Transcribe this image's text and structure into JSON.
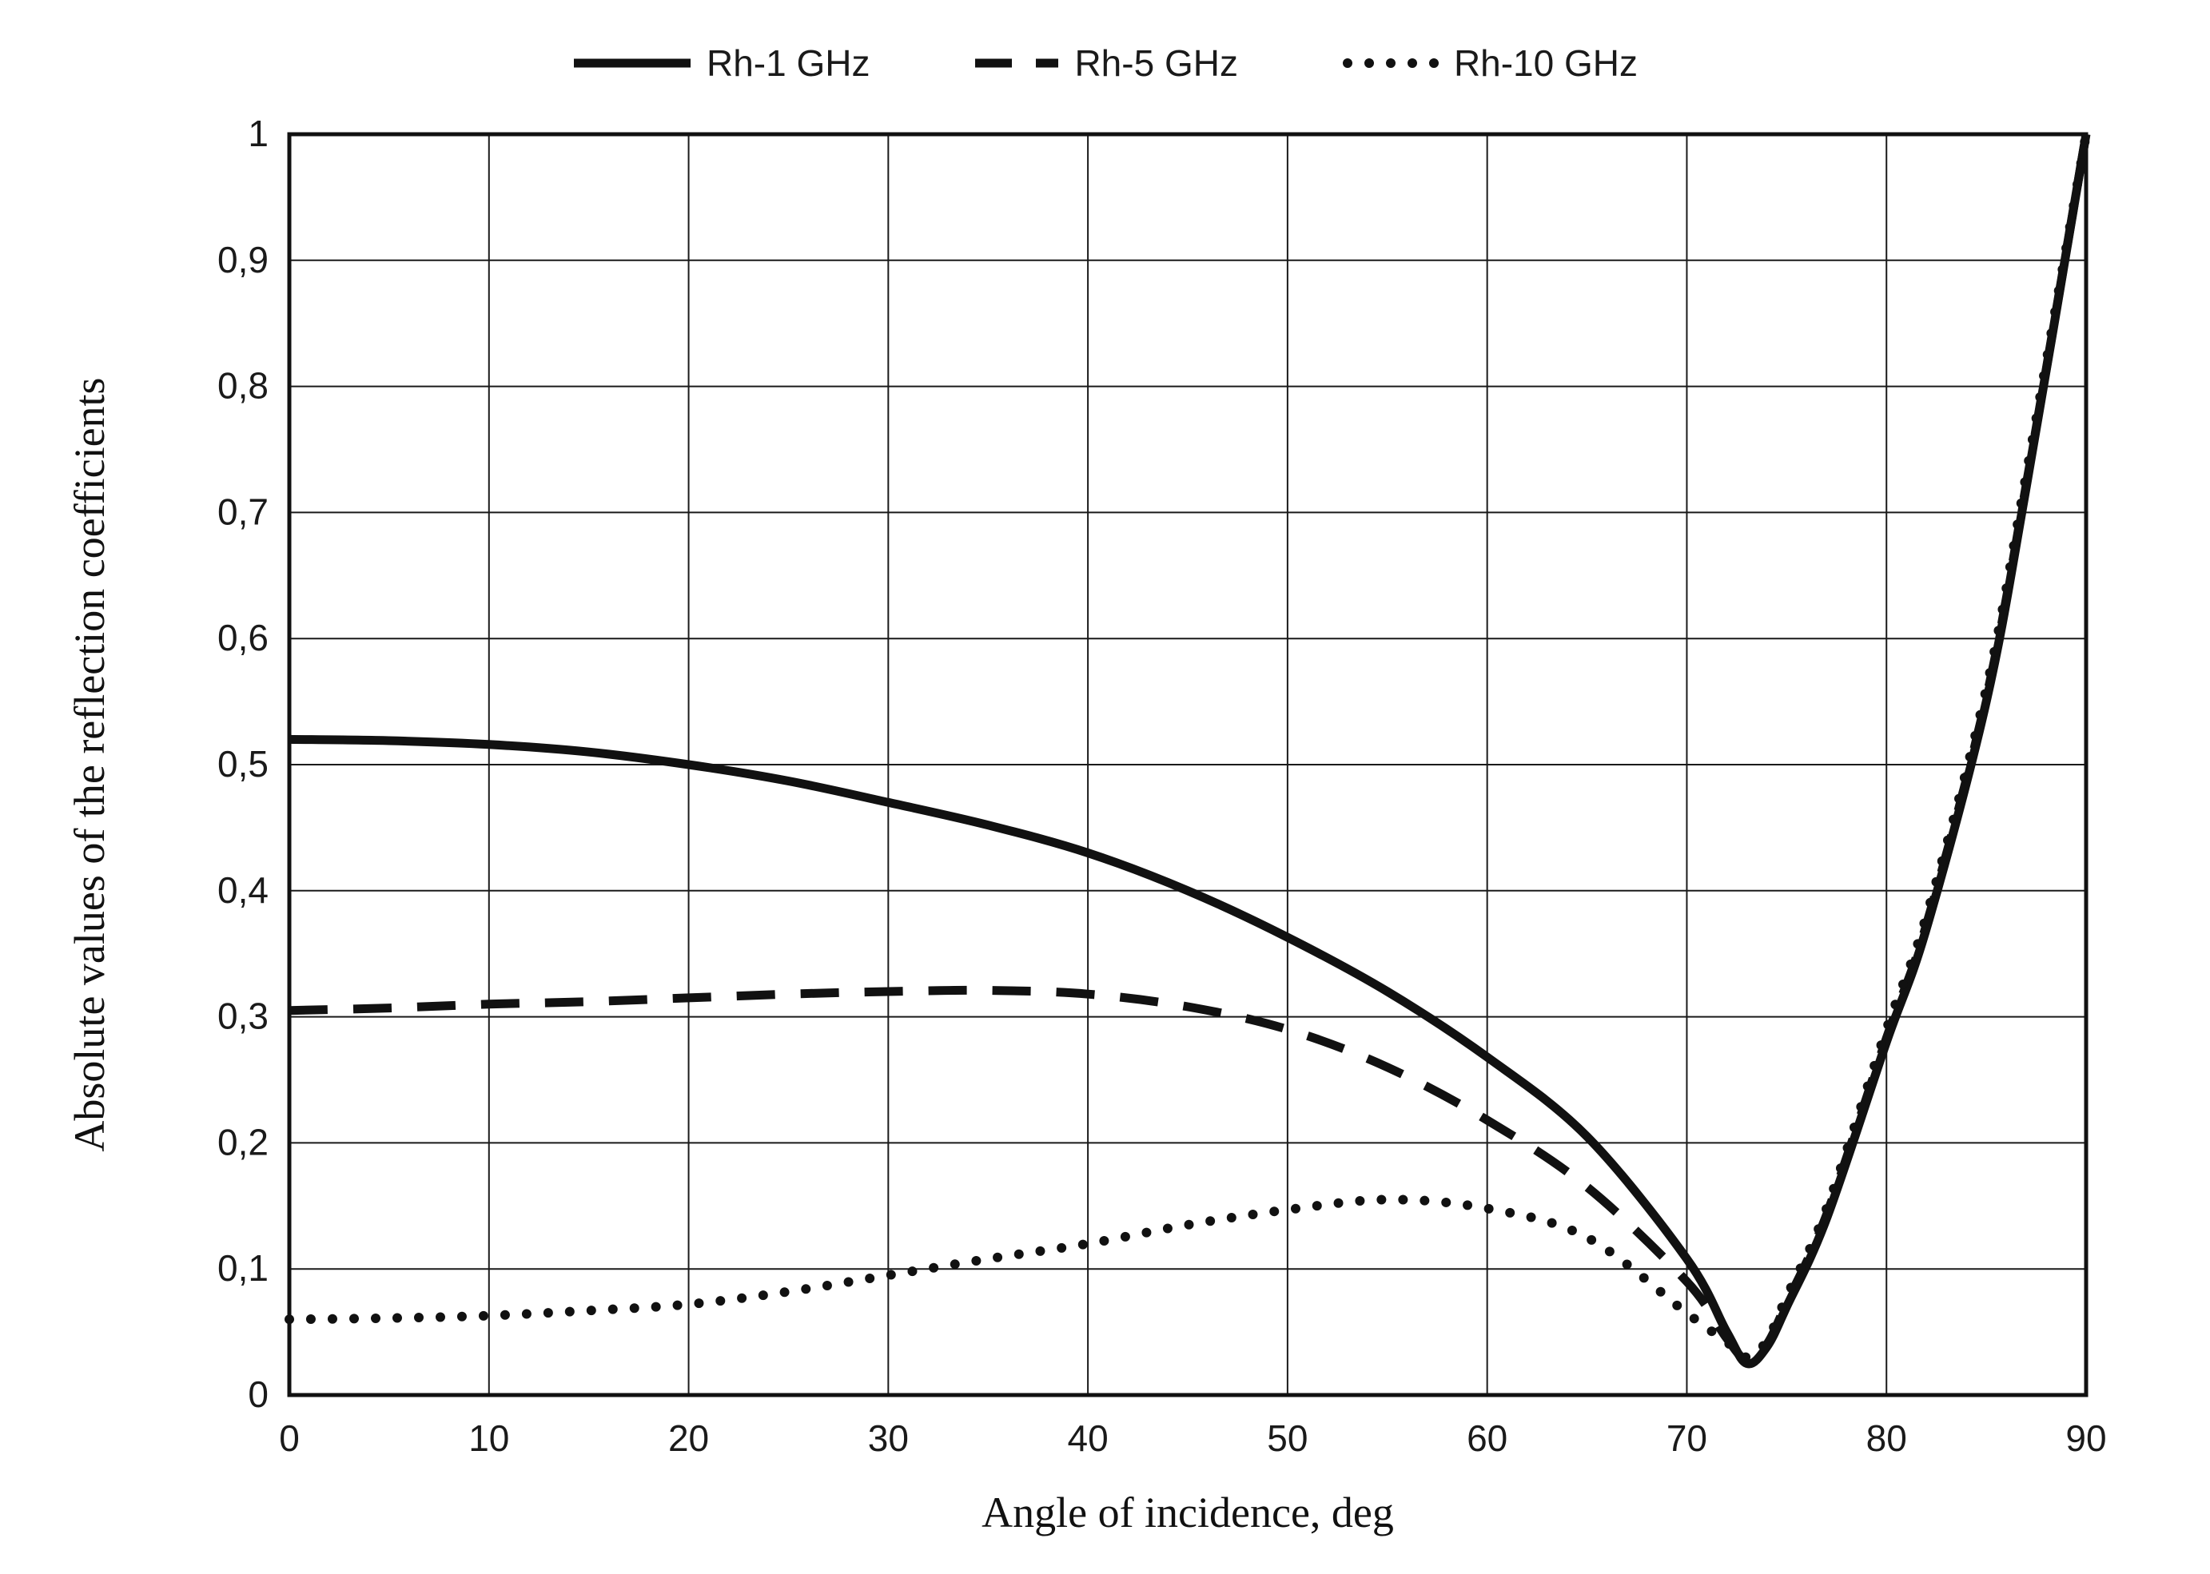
{
  "colors": {
    "line": "#111111",
    "grid": "#1a1a1a",
    "text": "#1a1a1a",
    "background": "#ffffff"
  },
  "chart_data": {
    "type": "line",
    "title": "",
    "xlabel": "Angle of incidence, deg",
    "ylabel": "Absolute values of the reflection coefficients",
    "xlim": [
      0,
      90
    ],
    "ylim": [
      0,
      1
    ],
    "grid": true,
    "legend_position": "top",
    "x_ticks": [
      0,
      10,
      20,
      30,
      40,
      50,
      60,
      70,
      80,
      90
    ],
    "x_tick_labels": [
      "0",
      "10",
      "20",
      "30",
      "40",
      "50",
      "60",
      "70",
      "80",
      "90"
    ],
    "y_ticks": [
      0,
      0.1,
      0.2,
      0.3,
      0.4,
      0.5,
      0.6,
      0.7,
      0.8,
      0.9,
      1
    ],
    "y_tick_labels": [
      "0",
      "0,1",
      "0,2",
      "0,3",
      "0,4",
      "0,5",
      "0,6",
      "0,7",
      "0,8",
      "0,9",
      "1"
    ],
    "x": [
      0,
      5,
      10,
      15,
      20,
      25,
      30,
      35,
      40,
      45,
      50,
      55,
      60,
      65,
      70,
      72,
      73,
      74,
      75,
      77,
      80,
      82,
      85,
      87,
      90
    ],
    "series": [
      {
        "name": "Rh-1 GHz",
        "style": "solid",
        "values": [
          0.52,
          0.519,
          0.516,
          0.51,
          0.5,
          0.487,
          0.47,
          0.452,
          0.43,
          0.4,
          0.363,
          0.32,
          0.268,
          0.205,
          0.108,
          0.05,
          0.025,
          0.038,
          0.07,
          0.14,
          0.28,
          0.37,
          0.55,
          0.72,
          1.0
        ]
      },
      {
        "name": "Rh-5 GHz",
        "style": "dashed",
        "values": [
          0.305,
          0.307,
          0.31,
          0.312,
          0.315,
          0.318,
          0.32,
          0.321,
          0.318,
          0.308,
          0.29,
          0.26,
          0.218,
          0.165,
          0.09,
          0.045,
          0.028,
          0.04,
          0.073,
          0.143,
          0.283,
          0.373,
          0.553,
          0.722,
          1.0
        ]
      },
      {
        "name": "Rh-10 GHz",
        "style": "dotted",
        "values": [
          0.06,
          0.061,
          0.063,
          0.067,
          0.072,
          0.082,
          0.095,
          0.108,
          0.12,
          0.135,
          0.147,
          0.155,
          0.148,
          0.125,
          0.065,
          0.042,
          0.03,
          0.043,
          0.078,
          0.148,
          0.29,
          0.38,
          0.56,
          0.73,
          1.0
        ]
      }
    ]
  }
}
